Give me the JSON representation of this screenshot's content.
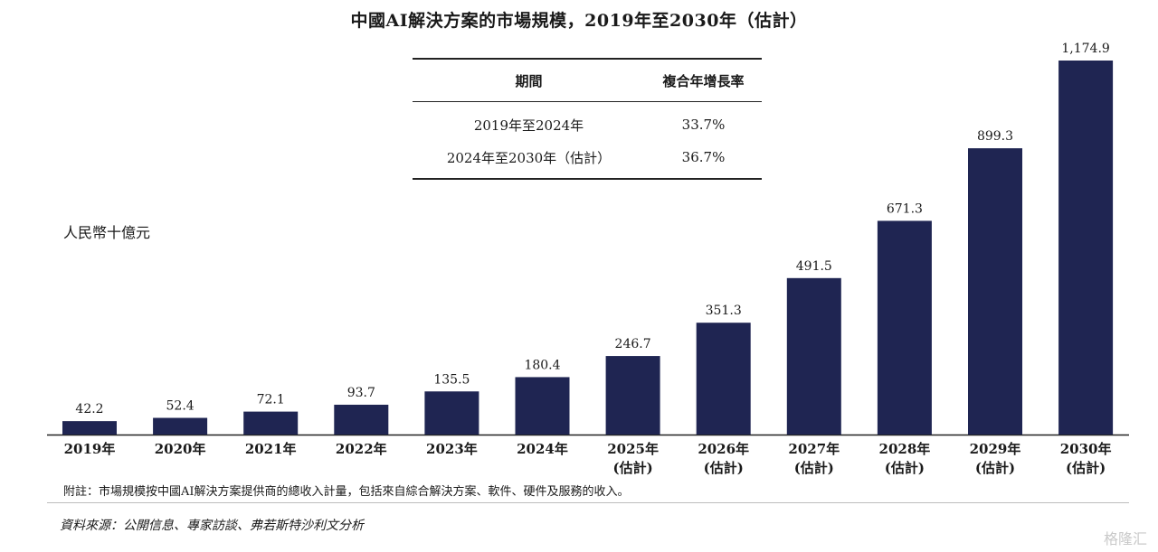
{
  "chart_data": {
    "type": "bar",
    "title": "中國AI解決方案的市場規模，2019年至2030年（估計）",
    "ylabel": "人民幣十億元",
    "categories": [
      [
        "2019年"
      ],
      [
        "2020年"
      ],
      [
        "2021年"
      ],
      [
        "2022年"
      ],
      [
        "2023年"
      ],
      [
        "2024年"
      ],
      [
        "2025年",
        "(估計)"
      ],
      [
        "2026年",
        "(估計)"
      ],
      [
        "2027年",
        "(估計)"
      ],
      [
        "2028年",
        "(估計)"
      ],
      [
        "2029年",
        "(估計)"
      ],
      [
        "2030年",
        "(估計)"
      ]
    ],
    "values": [
      42.2,
      52.4,
      72.1,
      93.7,
      135.5,
      180.4,
      246.7,
      351.3,
      491.5,
      671.3,
      899.3,
      1174.9
    ],
    "value_labels": [
      "42.2",
      "52.4",
      "72.1",
      "93.7",
      "135.5",
      "180.4",
      "246.7",
      "351.3",
      "491.5",
      "671.3",
      "899.3",
      "1,174.9"
    ],
    "ylim": [
      0,
      1174.9
    ],
    "bar_color": "#1f2552",
    "grid": false
  },
  "cagr_table": {
    "headers": [
      "期間",
      "複合年增長率"
    ],
    "rows": [
      [
        "2019年至2024年",
        "33.7%"
      ],
      [
        "2024年至2030年（估計）",
        "36.7%"
      ]
    ]
  },
  "note": "附註：市場規模按中國AI解決方案提供商的總收入計量，包括來自綜合解決方案、軟件、硬件及服務的收入。",
  "source": "資料來源：公開信息、專家訪談、弗若斯特沙利文分析",
  "watermark": "格隆汇"
}
